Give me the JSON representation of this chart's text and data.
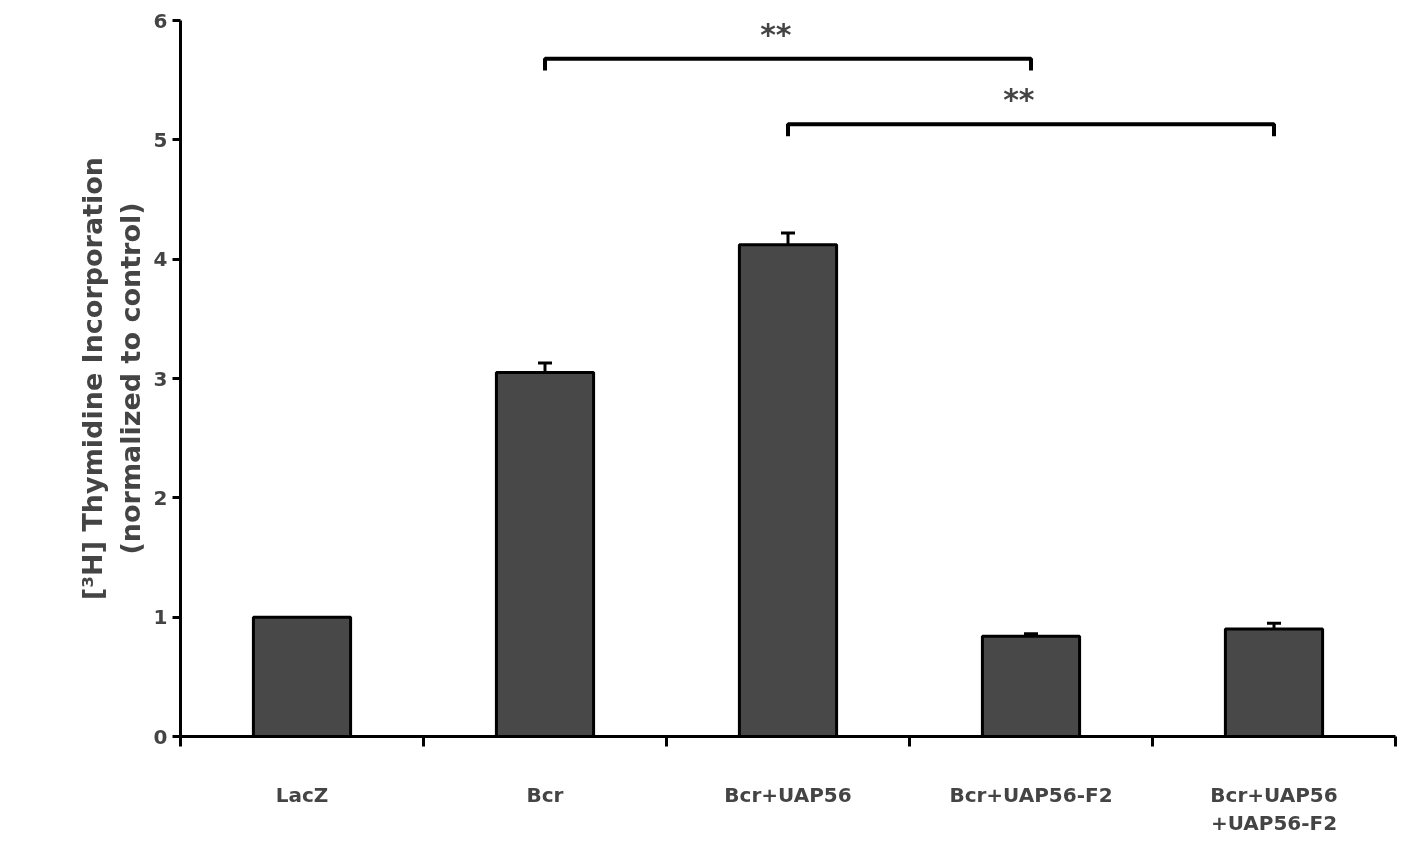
{
  "chart_data": {
    "type": "bar",
    "ylabel": "[³H] Thymidine Incorporation\n(normalized to control)",
    "categories": [
      "LacZ",
      "Bcr",
      "Bcr+UAP56",
      "Bcr+UAP56-F2",
      "Bcr+UAP56\n+UAP56-F2"
    ],
    "values": [
      1.0,
      3.05,
      4.12,
      0.84,
      0.9
    ],
    "errors": [
      null,
      0.08,
      0.1,
      0.02,
      0.05
    ],
    "color": "#484848",
    "ylim": [
      0,
      6
    ],
    "yticks": [
      0,
      1,
      2,
      3,
      4,
      5,
      6
    ],
    "grid": false,
    "annotations": [
      "**",
      "**"
    ]
  }
}
